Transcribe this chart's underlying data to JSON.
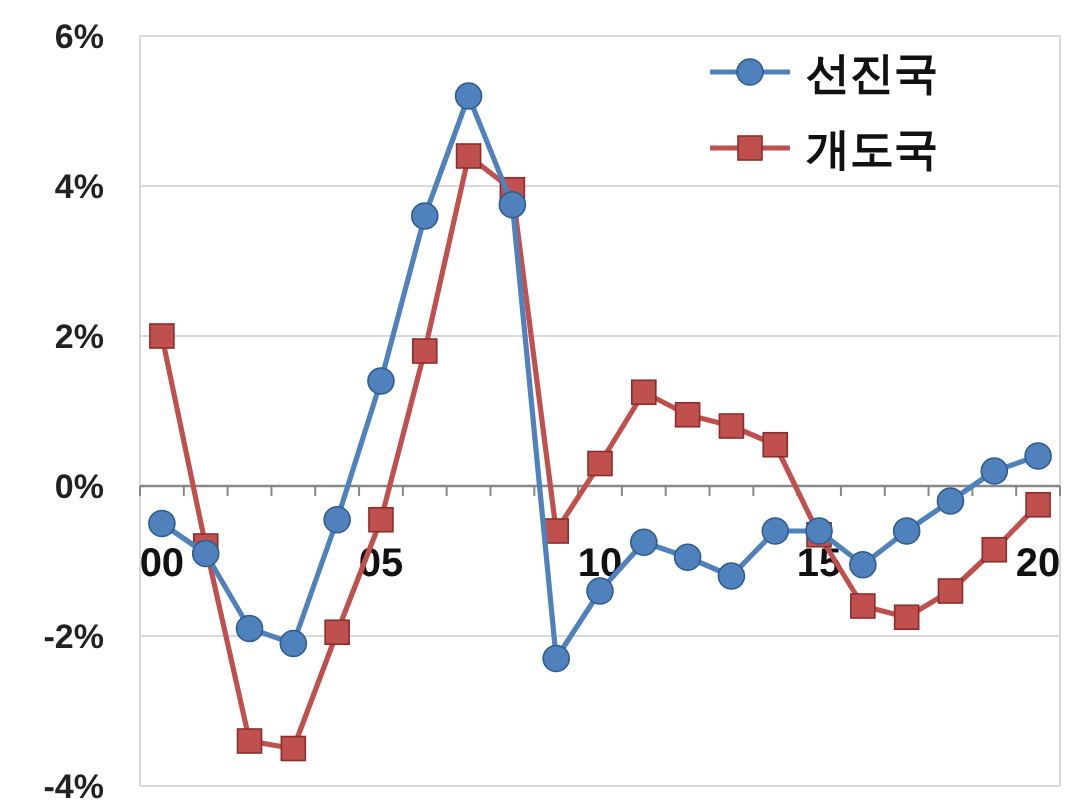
{
  "chart_data": {
    "type": "line",
    "categories": [
      "00",
      null,
      null,
      null,
      null,
      "05",
      null,
      null,
      null,
      null,
      "10",
      null,
      null,
      null,
      null,
      "15",
      null,
      null,
      null,
      null,
      "20"
    ],
    "series": [
      {
        "name": "선진국",
        "color": "#4f81bd",
        "marker": "circle",
        "values": [
          -0.5,
          -0.9,
          -1.9,
          -2.1,
          -0.45,
          1.4,
          3.6,
          5.2,
          3.75,
          -2.3,
          -1.4,
          -0.75,
          -0.95,
          -1.2,
          -0.6,
          -0.6,
          -1.05,
          -0.6,
          -0.2,
          0.2,
          0.4
        ]
      },
      {
        "name": "개도국",
        "color": "#c0504d",
        "marker": "square",
        "values": [
          2.0,
          -0.8,
          -3.4,
          -3.5,
          -1.95,
          -0.45,
          1.8,
          4.4,
          3.95,
          -0.6,
          0.3,
          1.25,
          0.95,
          0.8,
          0.55,
          -0.65,
          -1.6,
          -1.75,
          -1.4,
          -0.85,
          -0.25
        ]
      }
    ],
    "ylim": [
      -4,
      6
    ],
    "yticks": [
      {
        "value": -4,
        "label": "-4%"
      },
      {
        "value": -2,
        "label": "-2%"
      },
      {
        "value": 0,
        "label": "0%"
      },
      {
        "value": 2,
        "label": "2%"
      },
      {
        "value": 4,
        "label": "4%"
      },
      {
        "value": 6,
        "label": "6%"
      }
    ],
    "grid": "y",
    "legend": "top right",
    "line_style": "solid"
  }
}
